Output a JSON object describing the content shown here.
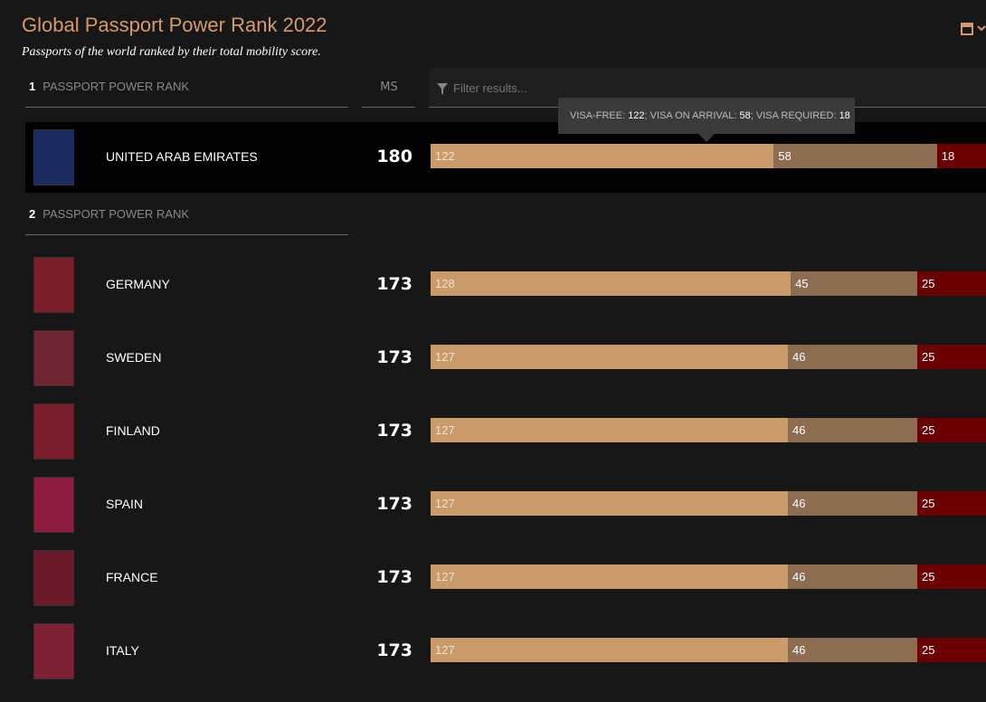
{
  "header": {
    "title": "Global Passport Power Rank 2022",
    "subtitle": "Passports of the world ranked by their total mobility score."
  },
  "columns": {
    "ms": "MS",
    "filter": "Filter results..."
  },
  "tooltip": {
    "labels": [
      "VISA-FREE:",
      "; VISA ON ARRIVAL:",
      "; VISA REQUIRED:"
    ]
  },
  "colors": {
    "visa_free": "#c99a6a",
    "visa_on_arrival": "#8d6d51",
    "visa_required": "#6a0000"
  },
  "groups": [
    {
      "rank": 1,
      "label": "PASSPORT POWER RANK",
      "rows": [
        {
          "country": "UNITED ARAB EMIRATES",
          "ms": 180,
          "visa_free": 122,
          "visa_on_arrival": 58,
          "visa_required": 18,
          "passport_color": "#1b2a5e"
        }
      ]
    },
    {
      "rank": 2,
      "label": "PASSPORT POWER RANK",
      "rows": [
        {
          "country": "GERMANY",
          "ms": 173,
          "visa_free": 128,
          "visa_on_arrival": 45,
          "visa_required": 25,
          "passport_color": "#7a1f2a"
        },
        {
          "country": "SWEDEN",
          "ms": 173,
          "visa_free": 127,
          "visa_on_arrival": 46,
          "visa_required": 25,
          "passport_color": "#6e2433"
        },
        {
          "country": "FINLAND",
          "ms": 173,
          "visa_free": 127,
          "visa_on_arrival": 46,
          "visa_required": 25,
          "passport_color": "#7a1c2c"
        },
        {
          "country": "SPAIN",
          "ms": 173,
          "visa_free": 127,
          "visa_on_arrival": 46,
          "visa_required": 25,
          "passport_color": "#8e1c3e"
        },
        {
          "country": "FRANCE",
          "ms": 173,
          "visa_free": 127,
          "visa_on_arrival": 46,
          "visa_required": 25,
          "passport_color": "#6a1a2a"
        },
        {
          "country": "ITALY",
          "ms": 173,
          "visa_free": 127,
          "visa_on_arrival": 46,
          "visa_required": 25,
          "passport_color": "#7e2036"
        }
      ]
    }
  ]
}
